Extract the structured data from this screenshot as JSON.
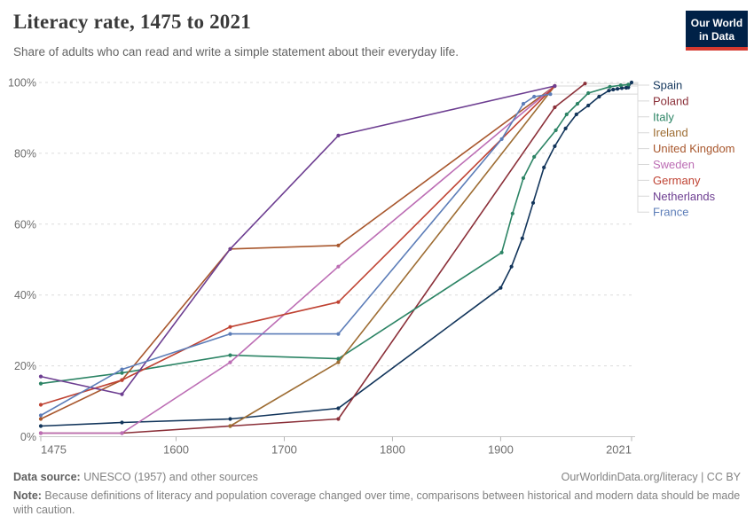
{
  "header": {
    "title": "Literacy rate, 1475 to 2021",
    "subtitle": "Share of adults who can read and write a simple statement about their everyday life.",
    "logo": {
      "line1": "Our World",
      "line2": "in Data",
      "bg_color": "#002147",
      "bar_color": "#D5392F"
    }
  },
  "footer": {
    "source_label": "Data source:",
    "source_text": " UNESCO (1957) and other sources",
    "attribution": "OurWorldinData.org/literacy | CC BY",
    "note_label": "Note:",
    "note_text": " Because definitions of literacy and population coverage changed over time, comparisons between historical and modern data should be made with caution."
  },
  "chart_data": {
    "type": "line",
    "title": "Literacy rate, 1475 to 2021",
    "subtitle": "Share of adults who can read and write a simple statement about their everyday life.",
    "xlabel": "",
    "ylabel": "",
    "xlim": [
      1475,
      2021
    ],
    "ylim": [
      0,
      100
    ],
    "grid": true,
    "legend_position": "right",
    "x_ticks": [
      1475,
      1600,
      1700,
      1800,
      1900,
      2021
    ],
    "x_tick_labels": [
      "1475",
      "1600",
      "1700",
      "1800",
      "1900",
      "2021"
    ],
    "y_ticks": [
      0,
      20,
      40,
      60,
      80,
      100
    ],
    "y_tick_labels": [
      "0%",
      "20%",
      "40%",
      "60%",
      "80%",
      "100%"
    ],
    "axis_color": "#c8c8c8",
    "gridline_color": "#dcdcdc",
    "tick_label_color": "#6e6e6e",
    "connector_color": "#d8d8d8",
    "series": [
      {
        "name": "Spain",
        "color": "#12355B",
        "points": [
          [
            1475,
            3
          ],
          [
            1550,
            4
          ],
          [
            1650,
            5
          ],
          [
            1750,
            8
          ],
          [
            1900,
            42
          ],
          [
            1910,
            48
          ],
          [
            1920,
            56
          ],
          [
            1930,
            66
          ],
          [
            1940,
            76
          ],
          [
            1950,
            82
          ],
          [
            1960,
            87
          ],
          [
            1970,
            91
          ],
          [
            1981,
            93.5
          ],
          [
            1991,
            96
          ],
          [
            2000,
            97.7
          ],
          [
            2004,
            98
          ],
          [
            2008,
            98.2
          ],
          [
            2012,
            98.4
          ],
          [
            2016,
            98.5
          ],
          [
            2018,
            98.6
          ],
          [
            2021,
            100
          ]
        ]
      },
      {
        "name": "Poland",
        "color": "#8B3039",
        "points": [
          [
            1475,
            1
          ],
          [
            1550,
            1
          ],
          [
            1650,
            3
          ],
          [
            1750,
            5
          ],
          [
            1950,
            93
          ],
          [
            1978,
            99.7
          ]
        ]
      },
      {
        "name": "Italy",
        "color": "#2C8465",
        "points": [
          [
            1475,
            15
          ],
          [
            1550,
            18
          ],
          [
            1650,
            23
          ],
          [
            1750,
            22
          ],
          [
            1901,
            52
          ],
          [
            1911,
            63
          ],
          [
            1921,
            73
          ],
          [
            1931,
            79
          ],
          [
            1951,
            86.5
          ],
          [
            1961,
            91
          ],
          [
            1971,
            94
          ],
          [
            1981,
            97
          ],
          [
            2001,
            98.8
          ],
          [
            2011,
            99.2
          ],
          [
            2018,
            99.4
          ]
        ]
      },
      {
        "name": "Ireland",
        "color": "#9E6D33",
        "points": [
          [
            1650,
            3
          ],
          [
            1750,
            21
          ],
          [
            1950,
            99
          ]
        ]
      },
      {
        "name": "United Kingdom",
        "color": "#A8572D",
        "points": [
          [
            1475,
            5
          ],
          [
            1550,
            16
          ],
          [
            1650,
            53
          ],
          [
            1750,
            54
          ],
          [
            1950,
            99
          ]
        ]
      },
      {
        "name": "Sweden",
        "color": "#BC6DB4",
        "points": [
          [
            1475,
            1
          ],
          [
            1550,
            1
          ],
          [
            1650,
            21
          ],
          [
            1750,
            48
          ],
          [
            1950,
            99
          ]
        ]
      },
      {
        "name": "Germany",
        "color": "#BF4232",
        "points": [
          [
            1475,
            9
          ],
          [
            1550,
            16
          ],
          [
            1650,
            31
          ],
          [
            1750,
            38
          ],
          [
            1950,
            99
          ]
        ]
      },
      {
        "name": "Netherlands",
        "color": "#6D3E91",
        "points": [
          [
            1475,
            17
          ],
          [
            1550,
            12
          ],
          [
            1650,
            53
          ],
          [
            1750,
            85
          ],
          [
            1950,
            99
          ]
        ]
      },
      {
        "name": "France",
        "color": "#5C7DB8",
        "points": [
          [
            1475,
            6
          ],
          [
            1550,
            19
          ],
          [
            1650,
            29
          ],
          [
            1750,
            29
          ],
          [
            1901,
            84
          ],
          [
            1921,
            94
          ],
          [
            1931,
            96
          ],
          [
            1946,
            96.7
          ]
        ]
      }
    ]
  }
}
